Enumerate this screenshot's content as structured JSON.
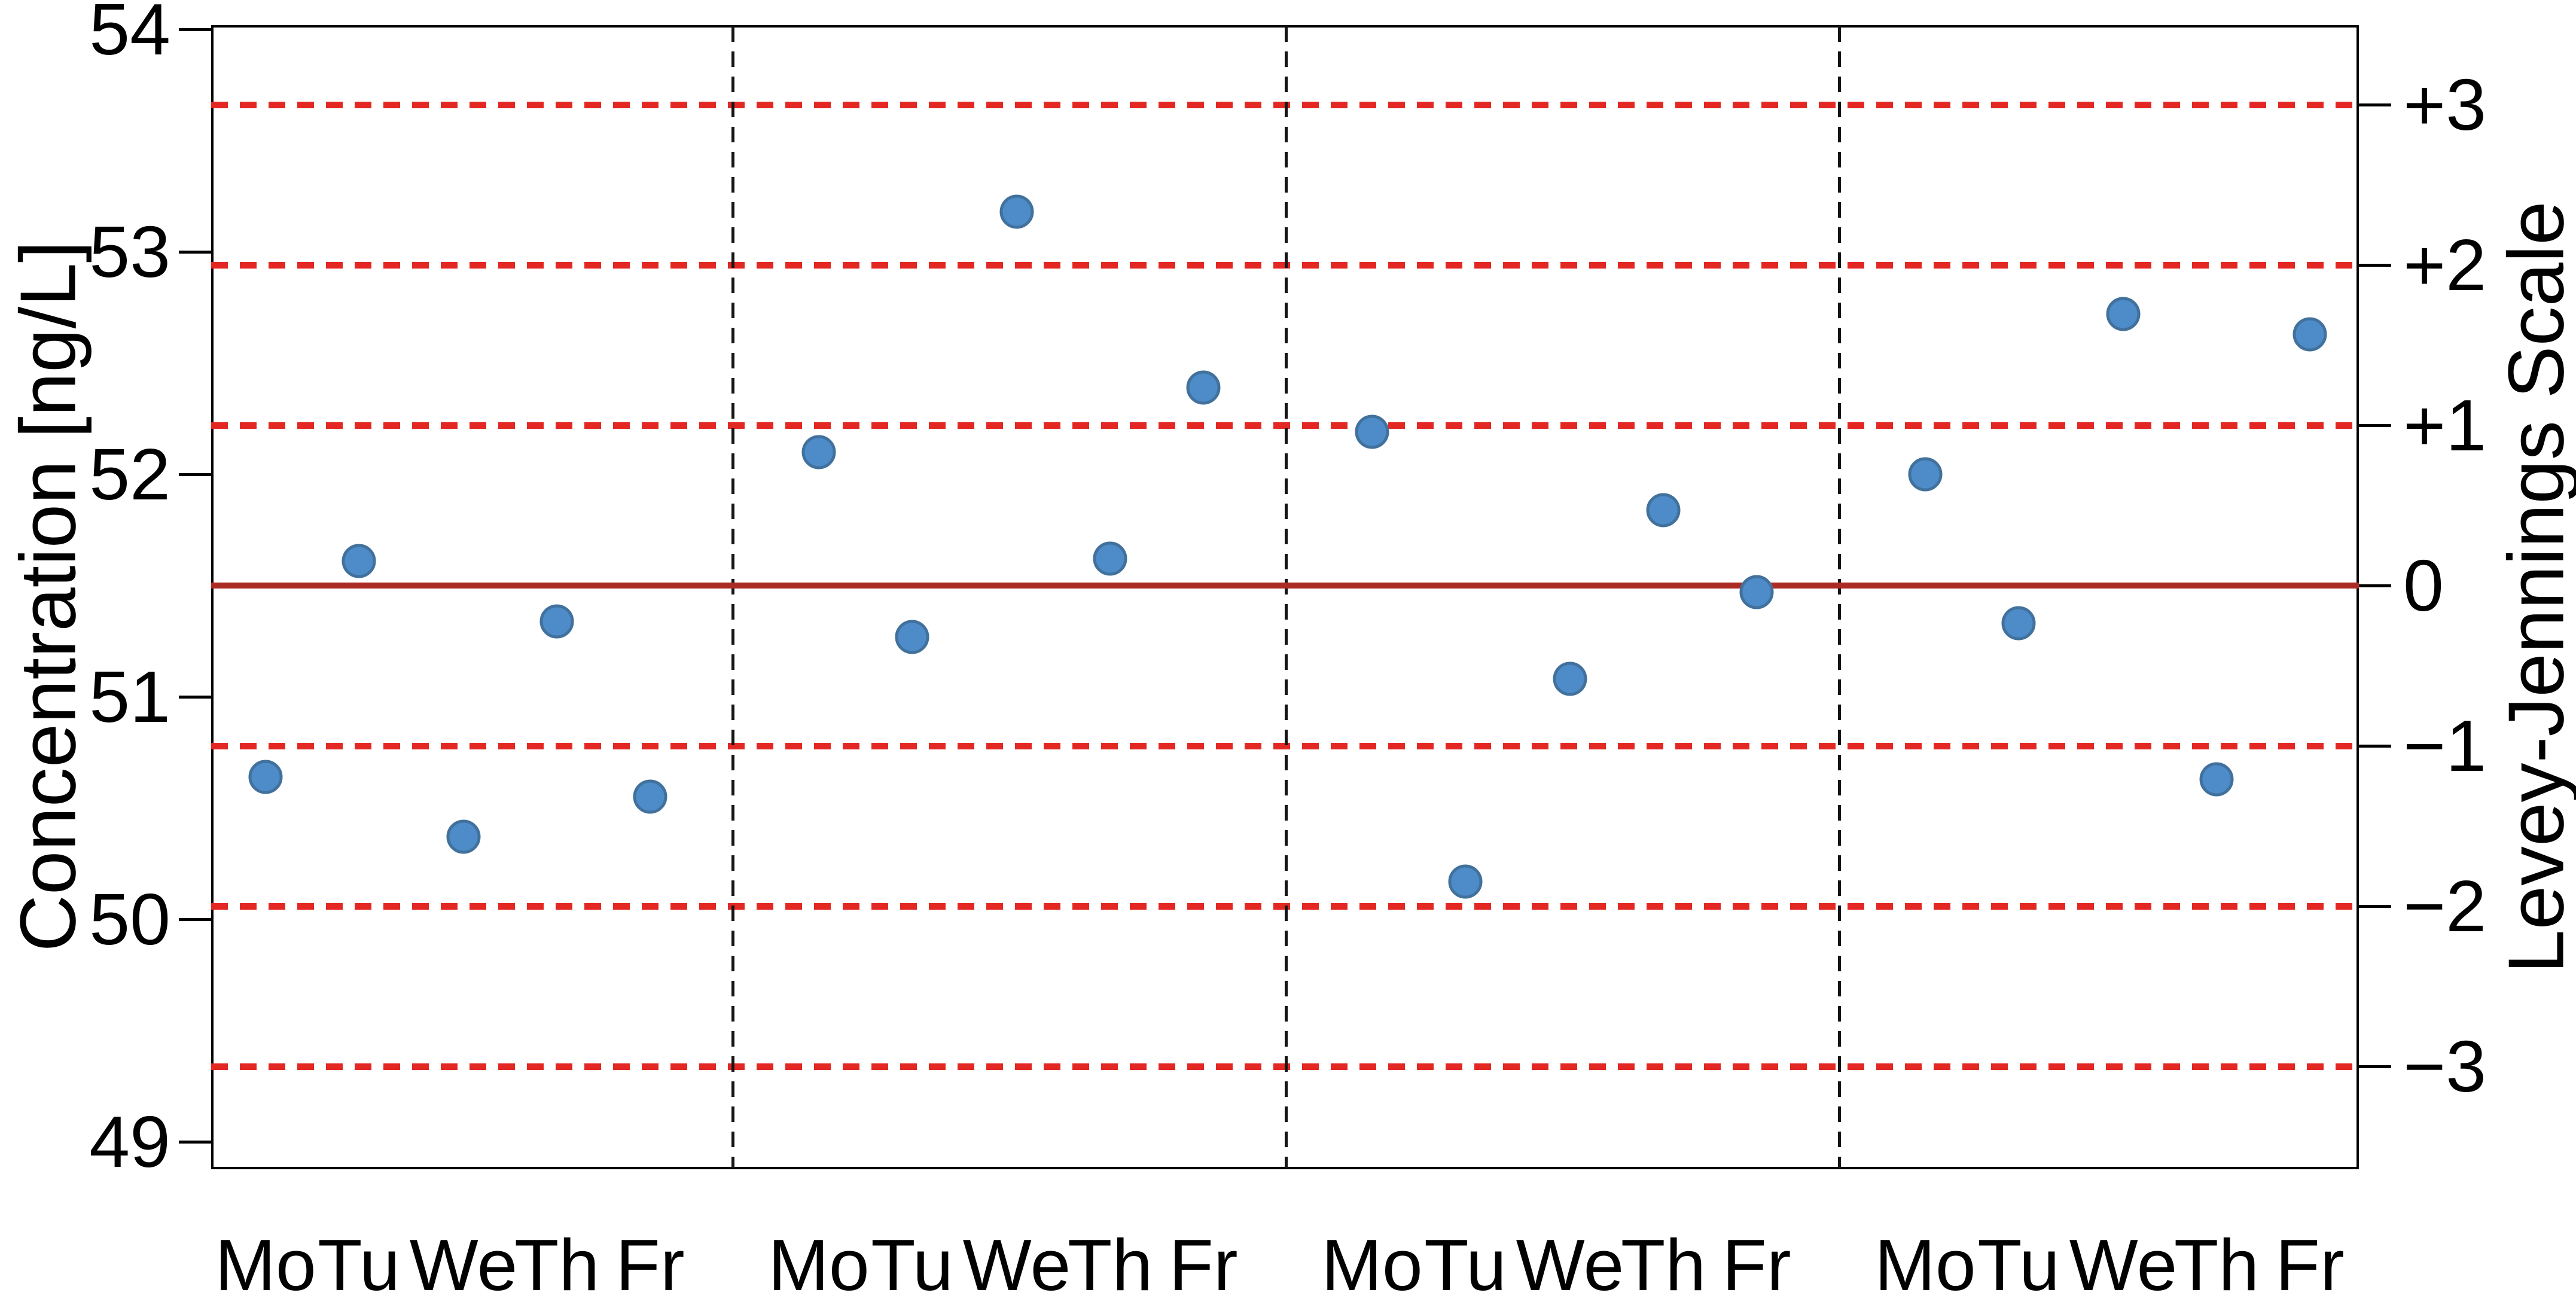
{
  "chart_data": {
    "type": "scatter",
    "title": "",
    "ylabel_left": "Concentration [ng/L]",
    "ylabel_right": "Levey-Jennings Scale",
    "grid": false,
    "legend": false,
    "y_axis_left": {
      "label": "Concentration [ng/L]",
      "ticks": [
        "54",
        "53",
        "52",
        "51",
        "50",
        "49"
      ],
      "range": [
        49,
        54
      ]
    },
    "y_axis_right": {
      "label": "Levey-Jennings Scale",
      "ticks": [
        "+3",
        "+2",
        "+1",
        "0",
        "−1",
        "−2",
        "−3"
      ],
      "range_sigma": [
        -3,
        3
      ]
    },
    "x_axis": {
      "day_labels_per_week": [
        "Mo",
        "Tu",
        "We",
        "Th",
        "Fr"
      ],
      "n_weeks": 4
    },
    "statistics": {
      "mean": 51.5,
      "sd": 0.72
    },
    "control_lines": [
      {
        "sigma": 3,
        "value": 53.66,
        "style": "dashed"
      },
      {
        "sigma": 2,
        "value": 52.94,
        "style": "dashed"
      },
      {
        "sigma": 1,
        "value": 52.22,
        "style": "dashed"
      },
      {
        "sigma": 0,
        "value": 51.5,
        "style": "solid"
      },
      {
        "sigma": -1,
        "value": 50.78,
        "style": "dashed"
      },
      {
        "sigma": -2,
        "value": 50.06,
        "style": "dashed"
      },
      {
        "sigma": -3,
        "value": 49.34,
        "style": "dashed"
      }
    ],
    "series": [
      {
        "week": 1,
        "points": [
          {
            "day": "Mo",
            "value": 50.64
          },
          {
            "day": "Tu",
            "value": 51.61
          },
          {
            "day": "We",
            "value": 50.37
          },
          {
            "day": "Th",
            "value": 51.34
          },
          {
            "day": "Fr",
            "value": 50.55
          }
        ]
      },
      {
        "week": 2,
        "points": [
          {
            "day": "Mo",
            "value": 52.1
          },
          {
            "day": "Tu",
            "value": 51.27
          },
          {
            "day": "We",
            "value": 53.18
          },
          {
            "day": "Th",
            "value": 51.62
          },
          {
            "day": "Fr",
            "value": 52.39
          }
        ]
      },
      {
        "week": 3,
        "points": [
          {
            "day": "Mo",
            "value": 52.19
          },
          {
            "day": "Tu",
            "value": 50.17
          },
          {
            "day": "We",
            "value": 51.08
          },
          {
            "day": "Th",
            "value": 51.84
          },
          {
            "day": "Fr",
            "value": 51.47
          }
        ]
      },
      {
        "week": 4,
        "points": [
          {
            "day": "Mo",
            "value": 52.0
          },
          {
            "day": "Tu",
            "value": 51.33
          },
          {
            "day": "We",
            "value": 52.72
          },
          {
            "day": "Th",
            "value": 50.63
          },
          {
            "day": "Fr",
            "value": 52.63
          }
        ]
      }
    ],
    "colors": {
      "point_fill": "#4D8CC8",
      "point_border": "#41719C",
      "mean_line": "#AD2B25",
      "sigma_line": "#E32823",
      "week_separator": "#151515",
      "axis": "#000000"
    }
  }
}
